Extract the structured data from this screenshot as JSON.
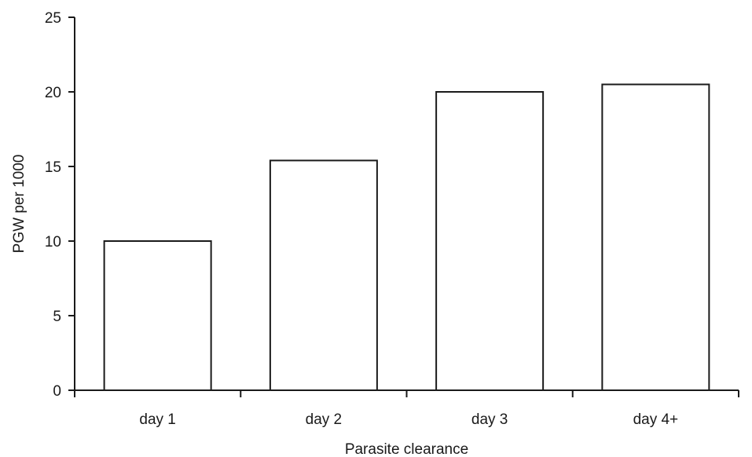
{
  "chart_data": {
    "type": "bar",
    "title": "",
    "xlabel": "Parasite clearance",
    "ylabel": "PGW per 1000",
    "categories": [
      "day 1",
      "day 2",
      "day 3",
      "day 4+"
    ],
    "values": [
      10,
      15.4,
      20,
      20.5
    ],
    "ylim": [
      0,
      25
    ],
    "yticks": [
      0,
      5,
      10,
      15,
      20,
      25
    ],
    "grid": false,
    "legend": "none",
    "bar_fill": "#ffffff",
    "bar_stroke": "#1a1a1a"
  }
}
